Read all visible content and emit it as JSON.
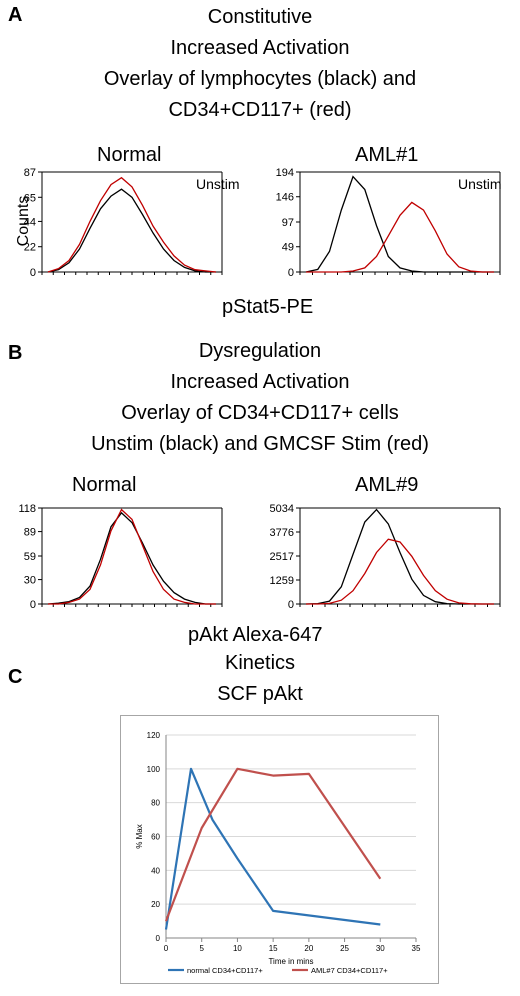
{
  "panel_a": {
    "letter": "A",
    "heading_lines": [
      "Constitutive",
      "Increased Activation",
      "Overlay of lymphocytes (black) and",
      "CD34+CD117+ (red)"
    ],
    "left_label": "Normal",
    "right_label": "AML#1",
    "left_tag": "Unstim",
    "right_tag": "Unstim",
    "y_axis_label": "Counts",
    "x_axis_label": "pStat5-PE"
  },
  "panel_b": {
    "letter": "B",
    "heading_lines": [
      "Dysregulation",
      "Increased Activation",
      "Overlay of CD34+CD117+ cells",
      "Unstim (black) and GMCSF Stim (red)"
    ],
    "left_label": "Normal",
    "right_label": "AML#9",
    "x_axis_label": "pAkt Alexa-647"
  },
  "panel_c": {
    "letter": "C",
    "heading_lines": [
      "Kinetics",
      "SCF pAkt"
    ]
  },
  "colors": {
    "black_series": "#000000",
    "red_series": "#c00000",
    "blue_line": "#2e74b5",
    "red_line": "#c0504d"
  },
  "chart_data": [
    {
      "type": "area",
      "panel": "A-left",
      "yticks": [
        0,
        22,
        44,
        65,
        87
      ],
      "ylim": [
        0,
        87
      ],
      "ylabel": "Counts",
      "series": [
        {
          "name": "lymphocytes (black)",
          "values": [
            0,
            2,
            8,
            20,
            38,
            55,
            66,
            72,
            65,
            50,
            34,
            20,
            10,
            4,
            1,
            0,
            0
          ]
        },
        {
          "name": "CD34+CD117+ (red)",
          "values": [
            0,
            3,
            10,
            24,
            44,
            62,
            76,
            82,
            74,
            58,
            40,
            26,
            14,
            6,
            2,
            1,
            0
          ]
        }
      ]
    },
    {
      "type": "area",
      "panel": "A-right",
      "yticks": [
        0,
        49,
        97,
        146,
        194
      ],
      "ylim": [
        0,
        194
      ],
      "series": [
        {
          "name": "lymphocytes (black)",
          "values": [
            0,
            5,
            40,
            120,
            185,
            160,
            90,
            30,
            8,
            2,
            0,
            0,
            0,
            0,
            0,
            0,
            0
          ]
        },
        {
          "name": "CD34+CD117+ (red)",
          "values": [
            0,
            0,
            0,
            0,
            2,
            8,
            30,
            70,
            110,
            135,
            120,
            80,
            35,
            10,
            2,
            0,
            0
          ]
        }
      ]
    },
    {
      "type": "area",
      "panel": "B-left",
      "yticks": [
        0,
        30,
        59,
        89,
        118
      ],
      "ylim": [
        0,
        118
      ],
      "series": [
        {
          "name": "Unstim (black)",
          "values": [
            0,
            1,
            3,
            8,
            22,
            55,
            95,
            112,
            100,
            75,
            48,
            28,
            14,
            6,
            2,
            0,
            0
          ]
        },
        {
          "name": "GMCSF Stim (red)",
          "values": [
            0,
            0,
            2,
            6,
            18,
            48,
            90,
            116,
            104,
            72,
            40,
            18,
            6,
            2,
            0,
            0,
            0
          ]
        }
      ]
    },
    {
      "type": "area",
      "panel": "B-right",
      "yticks": [
        0,
        1259,
        2517,
        3776,
        5034
      ],
      "ylim": [
        0,
        5034
      ],
      "series": [
        {
          "name": "Unstim (black)",
          "values": [
            0,
            20,
            150,
            900,
            2600,
            4300,
            4950,
            4200,
            2700,
            1300,
            450,
            120,
            20,
            0,
            0,
            0,
            0
          ]
        },
        {
          "name": "GMCSF Stim (red)",
          "values": [
            0,
            0,
            30,
            200,
            700,
            1600,
            2700,
            3400,
            3250,
            2500,
            1500,
            700,
            250,
            60,
            10,
            0,
            0
          ]
        }
      ]
    },
    {
      "type": "line",
      "panel": "C",
      "ylabel": "% Max",
      "xlabel": "Time in mins",
      "xticks": [
        0,
        5,
        10,
        15,
        20,
        25,
        30,
        35
      ],
      "yticks": [
        0,
        20,
        40,
        60,
        80,
        100,
        120
      ],
      "xlim": [
        0,
        35
      ],
      "ylim": [
        0,
        120
      ],
      "grid": true,
      "legend": "bottom",
      "series": [
        {
          "name": "normal CD34+CD117+",
          "color": "#2e74b5",
          "x": [
            0,
            3.5,
            6.5,
            10,
            15,
            30
          ],
          "y": [
            5,
            100,
            70,
            47,
            16,
            8
          ]
        },
        {
          "name": "AML#7  CD34+CD117+",
          "color": "#c0504d",
          "x": [
            0,
            5,
            10,
            15,
            20,
            30
          ],
          "y": [
            10,
            65,
            100,
            96,
            97,
            35
          ]
        }
      ]
    }
  ]
}
